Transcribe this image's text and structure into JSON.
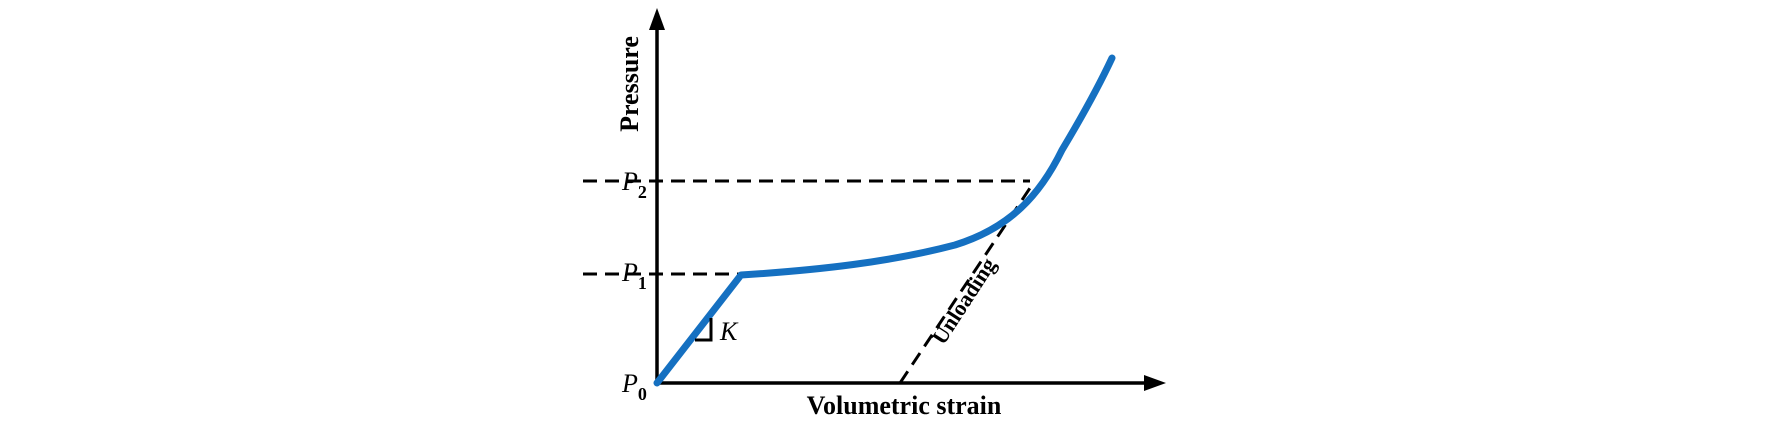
{
  "axes": {
    "x_title": "Volumetric strain",
    "y_title": "Pressure"
  },
  "labels": {
    "p0": {
      "letter": "P",
      "sub": "0"
    },
    "p1": {
      "letter": "P",
      "sub": "1"
    },
    "p2": {
      "letter": "P",
      "sub": "2"
    },
    "slope": "K",
    "unloading": "Unloading"
  },
  "colors": {
    "curve": "#1570C1",
    "axes": "#000000",
    "dashed": "#000000"
  }
}
